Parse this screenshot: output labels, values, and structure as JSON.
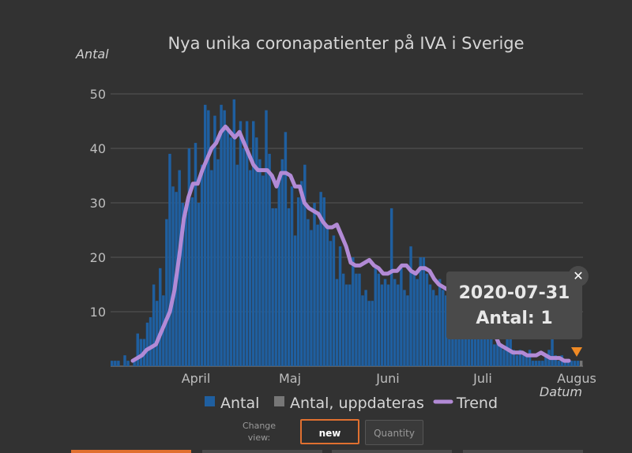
{
  "chart_data": {
    "type": "bar",
    "title": "Nya unika coronapatienter på IVA i Sverige",
    "ylabel": "Antal",
    "xlabel": "Datum",
    "ylim": [
      0,
      50
    ],
    "yticks": [
      10,
      20,
      30,
      40,
      50
    ],
    "xticks": [
      "April",
      "Maj",
      "Juni",
      "Juli",
      "Augus"
    ],
    "x_start": "2020-03-12",
    "x_end": "2020-08-01",
    "legend": [
      "Antal",
      "Antal, uppdateras",
      "Trend"
    ],
    "series": [
      {
        "name": "Antal",
        "values": [
          1,
          1,
          1,
          0,
          2,
          1,
          0,
          1,
          6,
          5,
          5,
          8,
          9,
          15,
          12,
          18,
          13,
          27,
          39,
          33,
          32,
          36,
          30,
          28,
          40,
          31,
          41,
          30,
          37,
          48,
          47,
          36,
          46,
          38,
          48,
          47,
          44,
          42,
          49,
          37,
          45,
          40,
          45,
          36,
          45,
          42,
          38,
          35,
          47,
          39,
          29,
          29,
          34,
          38,
          43,
          29,
          33,
          24,
          31,
          34,
          37,
          27,
          25,
          30,
          26,
          32,
          31,
          26,
          23,
          24,
          16,
          22,
          17,
          15,
          15,
          20,
          17,
          17,
          13,
          14,
          12,
          12,
          18,
          17,
          15,
          16,
          15,
          29,
          16,
          15,
          18,
          14,
          13,
          22,
          17,
          16,
          20,
          20,
          17,
          15,
          14,
          13,
          16,
          14,
          13,
          12,
          11,
          12,
          9,
          10,
          13,
          10,
          8,
          5,
          6,
          6,
          9,
          8,
          7,
          4,
          5,
          4,
          3,
          5,
          5,
          3,
          2,
          3,
          2,
          2,
          3,
          1,
          1,
          1,
          1,
          2,
          3,
          5,
          2,
          1,
          2,
          1,
          1,
          1,
          1,
          1
        ]
      },
      {
        "name": "Antal, uppdateras",
        "values": [
          1
        ]
      },
      {
        "name": "Trend",
        "values": [
          1,
          1.5,
          2,
          3,
          3.5,
          4,
          6,
          8,
          10,
          14,
          20,
          27,
          31,
          33.5,
          33.5,
          36,
          38,
          40,
          41,
          43,
          44,
          43,
          42,
          43,
          41,
          39,
          37,
          36,
          36,
          36,
          35,
          33,
          35.5,
          35.5,
          35,
          33,
          33,
          30,
          29,
          28.5,
          28,
          26.5,
          25.5,
          25.5,
          26,
          24,
          22,
          19,
          18.5,
          18.5,
          19,
          19.5,
          18.5,
          18,
          17,
          17,
          17.5,
          17.5,
          18.5,
          18.5,
          17.5,
          17,
          18,
          18,
          17.5,
          16,
          15,
          14.5,
          14,
          13,
          12.5,
          12.5,
          12,
          11,
          10,
          9,
          9,
          8,
          6,
          4,
          3.5,
          3,
          2.5,
          2.5,
          2.5,
          2,
          2,
          2,
          2.5,
          2,
          1.5,
          1.5,
          1.5,
          1,
          1
        ]
      }
    ]
  },
  "tooltip": {
    "date": "2020-07-31",
    "value_text": "Antal: 1"
  },
  "controls": {
    "label": "Change view:",
    "buttons": [
      "new",
      "Quantity"
    ]
  },
  "colors": {
    "bar": "#1f5fa0",
    "bar_updating": "#777777",
    "trend": "#b28ad6",
    "marker": "#f08a24",
    "grid": "#555555",
    "accent": "#e07030"
  }
}
